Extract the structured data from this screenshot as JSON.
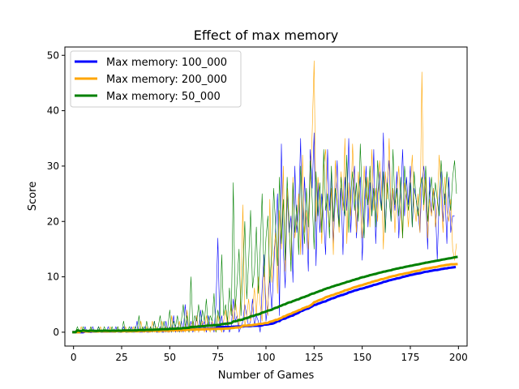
{
  "chart_data": {
    "type": "line",
    "title": "Effect of max memory",
    "xlabel": "Number of Games",
    "ylabel": "Score",
    "xlim": [
      -4.5,
      204.5
    ],
    "ylim": [
      -2.5,
      51.5
    ],
    "xticks": [
      0,
      25,
      50,
      75,
      100,
      125,
      150,
      175,
      200
    ],
    "yticks": [
      0,
      10,
      20,
      30,
      40,
      50
    ],
    "grid": false,
    "legend_position": "top-left",
    "legend": [
      {
        "label": "Max memory: 100_000",
        "color": "#0000ff"
      },
      {
        "label": "Max memory: 200_000",
        "color": "#ffa500"
      },
      {
        "label": "Max memory: 50_000",
        "color": "#008000"
      }
    ],
    "x_start": 0,
    "series": [
      {
        "name": "Max memory: 100_000",
        "color": "#0000ff",
        "raw_linewidth": 0.6,
        "mean_linewidth": 3,
        "raw": [
          0,
          0,
          0,
          0,
          0,
          0,
          1,
          0,
          0,
          0,
          1,
          0,
          0,
          1,
          0,
          0,
          0,
          0,
          1,
          0,
          0,
          0,
          1,
          0,
          0,
          0,
          1,
          0,
          0,
          0,
          1,
          0,
          0,
          2,
          0,
          0,
          0,
          1,
          0,
          0,
          1,
          0,
          2,
          0,
          0,
          1,
          0,
          0,
          2,
          0,
          1,
          0,
          3,
          0,
          1,
          0,
          2,
          0,
          5,
          1,
          0,
          2,
          0,
          1,
          3,
          0,
          4,
          1,
          2,
          0,
          3,
          1,
          2,
          0,
          5,
          17,
          1,
          3,
          0,
          1,
          2,
          0,
          1,
          6,
          2,
          3,
          0,
          1,
          2,
          5,
          3,
          1,
          2,
          6,
          1,
          3,
          2,
          0,
          8,
          14,
          2,
          5,
          10,
          4,
          11,
          19,
          25,
          3,
          34,
          15,
          8,
          25,
          18,
          21,
          9,
          30,
          18,
          22,
          35,
          14,
          28,
          20,
          11,
          33,
          26,
          36,
          12,
          27,
          18,
          25,
          20,
          14,
          33,
          22,
          29,
          16,
          24,
          31,
          19,
          26,
          14,
          28,
          22,
          35,
          18,
          25,
          30,
          17,
          24,
          28,
          13,
          22,
          30,
          19,
          27,
          21,
          33,
          16,
          25,
          29,
          22,
          36,
          18,
          27,
          31,
          20,
          26,
          22,
          29,
          17,
          24,
          33,
          21,
          28,
          23,
          30,
          19,
          26,
          24,
          22,
          18,
          27,
          30,
          25,
          15,
          28,
          21,
          26,
          23,
          13,
          24,
          29,
          20,
          25,
          16,
          28,
          18,
          21,
          21
        ]
      },
      {
        "name": "Max memory: 200_000",
        "color": "#ffa500",
        "raw_linewidth": 0.6,
        "mean_linewidth": 3,
        "raw": [
          0,
          0,
          0,
          0,
          1,
          0,
          0,
          0,
          0,
          1,
          0,
          0,
          0,
          0,
          1,
          0,
          0,
          0,
          0,
          1,
          0,
          0,
          0,
          1,
          0,
          0,
          0,
          1,
          0,
          0,
          0,
          1,
          0,
          0,
          0,
          2,
          0,
          0,
          1,
          0,
          0,
          2,
          0,
          1,
          0,
          0,
          2,
          0,
          1,
          0,
          0,
          3,
          0,
          1,
          0,
          2,
          0,
          1,
          0,
          4,
          0,
          1,
          2,
          0,
          3,
          0,
          1,
          2,
          0,
          3,
          1,
          0,
          2,
          1,
          0,
          3,
          1,
          0,
          2,
          4,
          1,
          3,
          5,
          2,
          6,
          3,
          1,
          8,
          23,
          1,
          3,
          6,
          2,
          4,
          8,
          3,
          10,
          5,
          2,
          12,
          6,
          3,
          24,
          9,
          14,
          18,
          7,
          22,
          15,
          30,
          11,
          26,
          19,
          13,
          28,
          17,
          20,
          25,
          14,
          32,
          18,
          22,
          15,
          27,
          36,
          49,
          20,
          28,
          24,
          16,
          30,
          33,
          22,
          19,
          26,
          14,
          31,
          24,
          18,
          29,
          22,
          35,
          16,
          27,
          21,
          34,
          25,
          18,
          29,
          23,
          17,
          30,
          24,
          28,
          19,
          33,
          22,
          26,
          20,
          31,
          27,
          15,
          29,
          24,
          35,
          21,
          26,
          18,
          25,
          30,
          22,
          17,
          27,
          24,
          19,
          26,
          32,
          23,
          20,
          25,
          18,
          47,
          22,
          28,
          17,
          24,
          21,
          26,
          19,
          23,
          32,
          25,
          18,
          28,
          22,
          20,
          24,
          15,
          13,
          16
        ]
      },
      {
        "name": "Max memory: 50_000",
        "color": "#008000",
        "raw_linewidth": 0.6,
        "mean_linewidth": 3,
        "raw": [
          0,
          0,
          1,
          0,
          0,
          1,
          0,
          0,
          0,
          1,
          0,
          0,
          0,
          1,
          0,
          0,
          1,
          0,
          0,
          0,
          1,
          0,
          0,
          1,
          0,
          0,
          2,
          0,
          0,
          1,
          0,
          0,
          1,
          0,
          3,
          0,
          1,
          0,
          2,
          0,
          1,
          0,
          2,
          0,
          1,
          3,
          0,
          2,
          0,
          1,
          4,
          0,
          2,
          1,
          3,
          0,
          2,
          5,
          1,
          3,
          0,
          10,
          1,
          3,
          2,
          5,
          1,
          4,
          2,
          6,
          1,
          3,
          2,
          7,
          0,
          4,
          2,
          14,
          3,
          5,
          2,
          8,
          3,
          27,
          4,
          9,
          15,
          3,
          11,
          20,
          6,
          13,
          22,
          8,
          11,
          19,
          7,
          15,
          25,
          10,
          17,
          21,
          9,
          14,
          26,
          19,
          12,
          28,
          16,
          24,
          13,
          28,
          20,
          11,
          27,
          18,
          23,
          14,
          30,
          22,
          16,
          26,
          19,
          31,
          24,
          15,
          29,
          21,
          27,
          18,
          33,
          22,
          25,
          17,
          30,
          20,
          26,
          23,
          19,
          28,
          24,
          21,
          32,
          18,
          25,
          29,
          22,
          27,
          20,
          34,
          24,
          17,
          28,
          23,
          30,
          21,
          26,
          19,
          31,
          25,
          22,
          29,
          18,
          27,
          24,
          20,
          33,
          23,
          26,
          21,
          28,
          17,
          30,
          25,
          22,
          27,
          19,
          29,
          24,
          21,
          26,
          28,
          23,
          30,
          20,
          25,
          28,
          22,
          27,
          24,
          21,
          31,
          26,
          23,
          29,
          25,
          22,
          28,
          31,
          25
        ]
      }
    ]
  }
}
